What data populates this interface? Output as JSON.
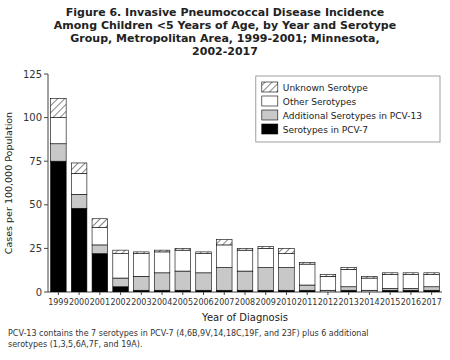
{
  "chart_data": {
    "type": "bar",
    "stacked": true,
    "title": "Figure 6. Invasive Pneumococcal Disease Incidence\nAmong Children <5 Years of Age, by Year and Serotype\nGroup, Metropolitan Area, 1999-2001; Minnesota,\n2002-2017",
    "x_label": "Year of Diagnosis",
    "y_label": "Cases per 100,000 Population",
    "annotations": [
      "PCV-13 contains the 7 serotypes in PCV-7 (4,6B,9V,14,18C,19F, and 23F) plus 6 additional\nserotypes (1,3,5,6A,7F, and 19A)."
    ],
    "categories": [
      "1999",
      "2000",
      "2001",
      "2002",
      "2003",
      "2004",
      "2005",
      "2006",
      "2007",
      "2008",
      "2009",
      "2010",
      "2011",
      "2012",
      "2013",
      "2014",
      "2015",
      "2016",
      "2017"
    ],
    "series": [
      {
        "name": "Serotypes in PCV-7",
        "color": "#000000",
        "values": [
          75,
          48,
          22,
          3,
          1,
          1,
          1,
          1,
          1,
          1,
          1,
          1,
          1,
          0,
          1,
          0,
          1,
          1,
          1
        ]
      },
      {
        "name": "Additional Serotypes in PCV-13",
        "color": "#c8c8c8",
        "values": [
          10,
          8,
          5,
          5,
          8,
          10,
          11,
          10,
          13,
          11,
          13,
          13,
          3,
          1,
          2,
          1,
          1,
          1,
          2
        ]
      },
      {
        "name": "Other Serotypes",
        "color": "#ffffff",
        "values": [
          15,
          12,
          10,
          14,
          13,
          12,
          12,
          11,
          13,
          12,
          11,
          8,
          12,
          8,
          10,
          7,
          8,
          8,
          7
        ]
      },
      {
        "name": "Unknown Serotype",
        "color": "#ffffff",
        "values": [
          11,
          6,
          5,
          2,
          1,
          1,
          1,
          1,
          3,
          1,
          1,
          3,
          1,
          1,
          1,
          1,
          1,
          1,
          1
        ]
      }
    ],
    "ylim": [
      0,
      125
    ],
    "yticks": [
      0,
      25,
      50,
      75,
      100,
      125
    ],
    "grid": false,
    "legend": "upper right"
  }
}
